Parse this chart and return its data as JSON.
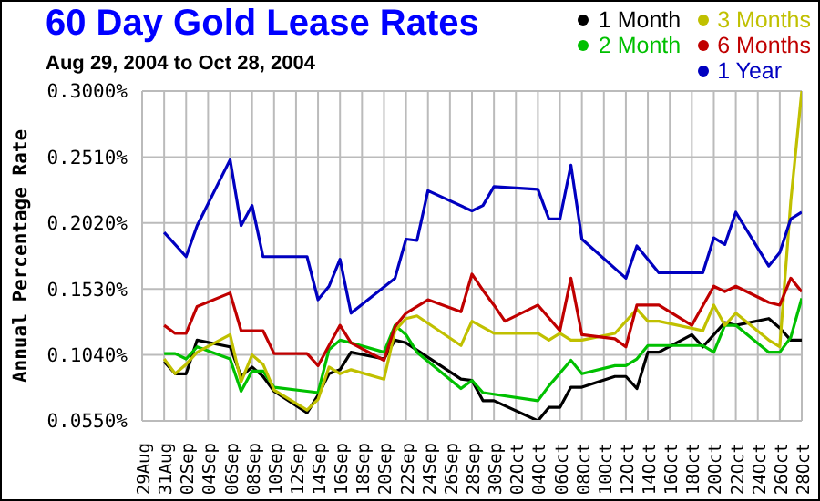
{
  "chart_data": {
    "type": "line",
    "title": "60 Day Gold Lease Rates",
    "subtitle": "Aug 29, 2004 to Oct 28, 2004",
    "ylabel": "Annual Percentage Rate",
    "xlim": [
      "2004-08-29",
      "2004-10-28"
    ],
    "xticks": [
      {
        "value": "2004-08-29",
        "label": "29Aug"
      },
      {
        "value": "2004-08-31",
        "label": "31Aug"
      },
      {
        "value": "2004-09-02",
        "label": "02Sep"
      },
      {
        "value": "2004-09-04",
        "label": "04Sep"
      },
      {
        "value": "2004-09-06",
        "label": "06Sep"
      },
      {
        "value": "2004-09-08",
        "label": "08Sep"
      },
      {
        "value": "2004-09-10",
        "label": "10Sep"
      },
      {
        "value": "2004-09-12",
        "label": "12Sep"
      },
      {
        "value": "2004-09-14",
        "label": "14Sep"
      },
      {
        "value": "2004-09-16",
        "label": "16Sep"
      },
      {
        "value": "2004-09-18",
        "label": "18Sep"
      },
      {
        "value": "2004-09-20",
        "label": "20Sep"
      },
      {
        "value": "2004-09-22",
        "label": "22Sep"
      },
      {
        "value": "2004-09-24",
        "label": "24Sep"
      },
      {
        "value": "2004-09-26",
        "label": "26Sep"
      },
      {
        "value": "2004-09-28",
        "label": "28Sep"
      },
      {
        "value": "2004-09-30",
        "label": "30Sep"
      },
      {
        "value": "2004-10-02",
        "label": "02Oct"
      },
      {
        "value": "2004-10-04",
        "label": "04Oct"
      },
      {
        "value": "2004-10-06",
        "label": "06Oct"
      },
      {
        "value": "2004-10-08",
        "label": "08Oct"
      },
      {
        "value": "2004-10-10",
        "label": "10Oct"
      },
      {
        "value": "2004-10-12",
        "label": "12Oct"
      },
      {
        "value": "2004-10-14",
        "label": "14Oct"
      },
      {
        "value": "2004-10-16",
        "label": "16Oct"
      },
      {
        "value": "2004-10-18",
        "label": "18Oct"
      },
      {
        "value": "2004-10-20",
        "label": "20Oct"
      },
      {
        "value": "2004-10-22",
        "label": "22Oct"
      },
      {
        "value": "2004-10-24",
        "label": "24Oct"
      },
      {
        "value": "2004-10-26",
        "label": "26Oct"
      },
      {
        "value": "2004-10-28",
        "label": "28Oct"
      }
    ],
    "ylim": [
      0.055,
      0.3
    ],
    "yticks": [
      {
        "value": 0.055,
        "label": "0.0550%"
      },
      {
        "value": 0.104,
        "label": "0.1040%"
      },
      {
        "value": 0.153,
        "label": "0.1530%"
      },
      {
        "value": 0.202,
        "label": "0.2020%"
      },
      {
        "value": 0.251,
        "label": "0.2510%"
      },
      {
        "value": 0.3,
        "label": "0.3000%"
      }
    ],
    "grid": true,
    "legend": "top right",
    "marker": "none",
    "line_style": "solid",
    "series": [
      {
        "name": "1 Month",
        "color": "#000000",
        "x": [
          "2004-08-31",
          "2004-09-01",
          "2004-09-02",
          "2004-09-03",
          "2004-09-06",
          "2004-09-07",
          "2004-09-08",
          "2004-09-09",
          "2004-09-10",
          "2004-09-13",
          "2004-09-14",
          "2004-09-15",
          "2004-09-16",
          "2004-09-17",
          "2004-09-20",
          "2004-09-21",
          "2004-09-22",
          "2004-09-27",
          "2004-09-28",
          "2004-09-29",
          "2004-09-30",
          "2004-10-04",
          "2004-10-05",
          "2004-10-06",
          "2004-10-07",
          "2004-10-08",
          "2004-10-11",
          "2004-10-12",
          "2004-10-13",
          "2004-10-14",
          "2004-10-15",
          "2004-10-18",
          "2004-10-19",
          "2004-10-21",
          "2004-10-22",
          "2004-10-25",
          "2004-10-26",
          "2004-10-27",
          "2004-10-28"
        ],
        "values": [
          0.099,
          0.09,
          0.09,
          0.115,
          0.11,
          0.088,
          0.095,
          0.088,
          0.077,
          0.061,
          0.074,
          0.09,
          0.093,
          0.106,
          0.101,
          0.115,
          0.113,
          0.086,
          0.085,
          0.07,
          0.07,
          0.055,
          0.065,
          0.065,
          0.08,
          0.08,
          0.088,
          0.088,
          0.079,
          0.106,
          0.106,
          0.119,
          0.11,
          0.128,
          0.126,
          0.131,
          0.124,
          0.115,
          0.115
        ]
      },
      {
        "name": "2 Month",
        "color": "#00c000",
        "x": [
          "2004-08-31",
          "2004-09-01",
          "2004-09-02",
          "2004-09-03",
          "2004-09-06",
          "2004-09-07",
          "2004-09-08",
          "2004-09-09",
          "2004-09-10",
          "2004-09-13",
          "2004-09-14",
          "2004-09-15",
          "2004-09-16",
          "2004-09-17",
          "2004-09-20",
          "2004-09-21",
          "2004-09-22",
          "2004-09-23",
          "2004-09-27",
          "2004-09-28",
          "2004-09-29",
          "2004-10-04",
          "2004-10-05",
          "2004-10-07",
          "2004-10-08",
          "2004-10-11",
          "2004-10-12",
          "2004-10-13",
          "2004-10-14",
          "2004-10-19",
          "2004-10-20",
          "2004-10-21",
          "2004-10-22",
          "2004-10-25",
          "2004-10-26",
          "2004-10-27",
          "2004-10-28"
        ],
        "values": [
          0.105,
          0.105,
          0.101,
          0.11,
          0.101,
          0.077,
          0.092,
          0.092,
          0.08,
          0.077,
          0.076,
          0.108,
          0.115,
          0.113,
          0.106,
          0.126,
          0.119,
          0.106,
          0.079,
          0.085,
          0.076,
          0.07,
          0.081,
          0.1,
          0.09,
          0.096,
          0.096,
          0.101,
          0.111,
          0.111,
          0.106,
          0.126,
          0.126,
          0.106,
          0.106,
          0.117,
          0.146
        ]
      },
      {
        "name": "3 Months",
        "color": "#c0c000",
        "x": [
          "2004-08-31",
          "2004-09-01",
          "2004-09-02",
          "2004-09-03",
          "2004-09-06",
          "2004-09-07",
          "2004-09-08",
          "2004-09-09",
          "2004-09-10",
          "2004-09-13",
          "2004-09-14",
          "2004-09-15",
          "2004-09-16",
          "2004-09-17",
          "2004-09-20",
          "2004-09-21",
          "2004-09-22",
          "2004-09-23",
          "2004-09-27",
          "2004-09-28",
          "2004-09-30",
          "2004-10-04",
          "2004-10-05",
          "2004-10-06",
          "2004-10-07",
          "2004-10-08",
          "2004-10-11",
          "2004-10-13",
          "2004-10-14",
          "2004-10-15",
          "2004-10-19",
          "2004-10-20",
          "2004-10-21",
          "2004-10-22",
          "2004-10-25",
          "2004-10-26",
          "2004-10-27",
          "2004-10-28"
        ],
        "values": [
          0.101,
          0.09,
          0.097,
          0.106,
          0.119,
          0.084,
          0.104,
          0.097,
          0.078,
          0.063,
          0.071,
          0.095,
          0.09,
          0.093,
          0.086,
          0.122,
          0.131,
          0.133,
          0.111,
          0.129,
          0.12,
          0.12,
          0.115,
          0.12,
          0.115,
          0.115,
          0.12,
          0.138,
          0.129,
          0.129,
          0.122,
          0.141,
          0.126,
          0.135,
          0.115,
          0.11,
          0.218,
          0.3
        ]
      },
      {
        "name": "6 Months",
        "color": "#c00000",
        "x": [
          "2004-08-31",
          "2004-09-01",
          "2004-09-02",
          "2004-09-03",
          "2004-09-06",
          "2004-09-07",
          "2004-09-09",
          "2004-09-10",
          "2004-09-13",
          "2004-09-14",
          "2004-09-16",
          "2004-09-17",
          "2004-09-20",
          "2004-09-21",
          "2004-09-22",
          "2004-09-24",
          "2004-09-27",
          "2004-09-28",
          "2004-09-29",
          "2004-09-30",
          "2004-10-01",
          "2004-10-04",
          "2004-10-06",
          "2004-10-07",
          "2004-10-08",
          "2004-10-11",
          "2004-10-12",
          "2004-10-13",
          "2004-10-15",
          "2004-10-18",
          "2004-10-20",
          "2004-10-21",
          "2004-10-22",
          "2004-10-25",
          "2004-10-26",
          "2004-10-27",
          "2004-10-28"
        ],
        "values": [
          0.126,
          0.12,
          0.12,
          0.14,
          0.15,
          0.122,
          0.122,
          0.105,
          0.105,
          0.096,
          0.126,
          0.113,
          0.1,
          0.125,
          0.135,
          0.145,
          0.136,
          0.164,
          0.152,
          0.141,
          0.129,
          0.141,
          0.122,
          0.161,
          0.119,
          0.116,
          0.11,
          0.141,
          0.141,
          0.126,
          0.155,
          0.151,
          0.155,
          0.143,
          0.141,
          0.161,
          0.151
        ]
      },
      {
        "name": "1 Year",
        "color": "#0000c0",
        "x": [
          "2004-08-31",
          "2004-09-02",
          "2004-09-03",
          "2004-09-06",
          "2004-09-07",
          "2004-09-08",
          "2004-09-09",
          "2004-09-13",
          "2004-09-14",
          "2004-09-15",
          "2004-09-16",
          "2004-09-17",
          "2004-09-21",
          "2004-09-22",
          "2004-09-23",
          "2004-09-24",
          "2004-09-28",
          "2004-09-29",
          "2004-09-30",
          "2004-10-04",
          "2004-10-05",
          "2004-10-06",
          "2004-10-07",
          "2004-10-08",
          "2004-10-12",
          "2004-10-13",
          "2004-10-15",
          "2004-10-19",
          "2004-10-20",
          "2004-10-21",
          "2004-10-22",
          "2004-10-25",
          "2004-10-26",
          "2004-10-27",
          "2004-10-28"
        ],
        "values": [
          0.195,
          0.177,
          0.2,
          0.249,
          0.2,
          0.215,
          0.177,
          0.177,
          0.145,
          0.155,
          0.175,
          0.135,
          0.161,
          0.19,
          0.189,
          0.226,
          0.211,
          0.215,
          0.229,
          0.227,
          0.205,
          0.205,
          0.245,
          0.19,
          0.161,
          0.185,
          0.165,
          0.165,
          0.191,
          0.186,
          0.21,
          0.17,
          0.18,
          0.205,
          0.21
        ]
      }
    ]
  }
}
